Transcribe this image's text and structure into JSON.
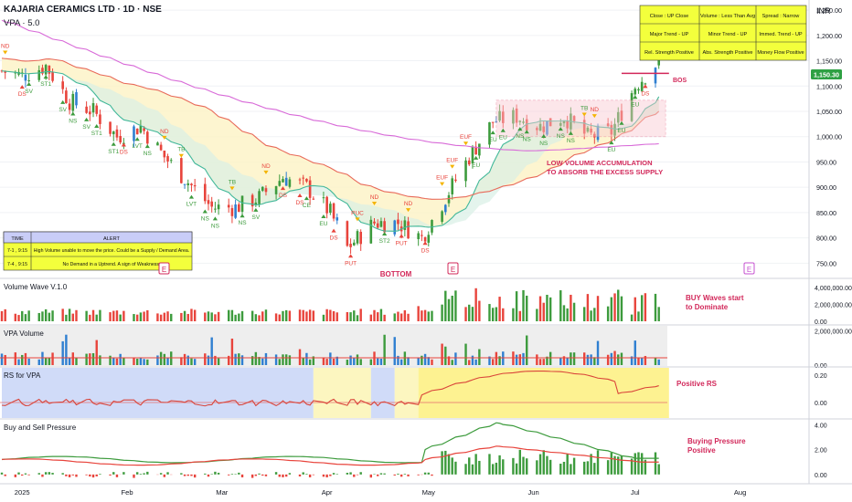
{
  "header": {
    "symbol_line": "KAJARIA CERAMICS LTD · 1D · NSE",
    "indicator": "VPA · 5.0",
    "currency": "INR",
    "price_tag": "1,150.30"
  },
  "status_table": [
    [
      "Close : UP Close",
      "Volume : Less Than Avg",
      "Spread : Narrow"
    ],
    [
      "Major Trend - UP",
      "Minor Trend - UP",
      "Immed. Trend - UP"
    ],
    [
      "Rel. Strength Positive",
      "Abs. Strength Positive",
      "Money Flow Positive"
    ]
  ],
  "alert_table": {
    "headers": [
      "TIME",
      "ALERT"
    ],
    "rows": [
      [
        "7-1 , 9:15",
        "High Volume unable to move the price. Could be a Supply / Demand Area."
      ],
      [
        "7-4 , 9:15",
        "No Demand in a Uptrend. A sign of Weakness."
      ]
    ]
  },
  "annotations": {
    "bottom": "BOTTOM",
    "low_volume_1": "LOW VOLUME ACCUMULATION",
    "low_volume_2": "TO ABSORB THE EXCESS SUPPLY",
    "buy_waves_1": "BUY Waves start",
    "buy_waves_2": "to Dominate",
    "positive_rs": "Positive RS",
    "buying_pressure_1": "Buying Pressure",
    "buying_pressure_2": "Positive",
    "bos": "BOS",
    "event_marker": "E"
  },
  "signal_labels": [
    "ND",
    "DS",
    "SV",
    "ST1",
    "SV",
    "NS",
    "SV",
    "ST1",
    "ST1",
    "DS",
    "LVT",
    "NS",
    "ND",
    "TB",
    "LVT",
    "NS",
    "NS",
    "TB",
    "NS",
    "SV",
    "ND",
    "DS",
    "DS",
    "CE",
    "EU",
    "DS",
    "PUT",
    "PUC",
    "ND",
    "ST2",
    "PUT",
    "ND",
    "DS",
    "EUF",
    "EUF",
    "EUF",
    "EU",
    "EU",
    "EU",
    "NS",
    "NS",
    "NS",
    "NS",
    "NS",
    "TB",
    "ND",
    "EU",
    "EU",
    "EU",
    "DS"
  ],
  "panes": {
    "volume_wave": "Volume Wave V.1.0",
    "vpa_volume": "VPA Volume",
    "rs": "RS for VPA",
    "pressure": "Buy and Sell Pressure"
  },
  "time_axis": [
    "2025",
    "Feb",
    "Mar",
    "Apr",
    "May",
    "Jun",
    "Jul",
    "Aug"
  ],
  "colors": {
    "up": "#3d9b3d",
    "down": "#e8443c",
    "blue": "#2f7fd1",
    "ma_long": "#d86ad8",
    "band_outer": "#e86a5a",
    "band_inner": "#43b89a",
    "annotation": "#d2285a",
    "price_tag": "#2ea043"
  },
  "chart_data": [
    {
      "type": "candlestick",
      "title": "KAJARIA CERAMICS LTD · 1D · NSE",
      "ylabel": "INR",
      "y_ticks": [
        1250,
        1200,
        1150,
        1100,
        1050,
        1000,
        950,
        900,
        850,
        800,
        750
      ],
      "ylim": [
        720,
        1270
      ],
      "last_price": 1150.3,
      "close_path": [
        {
          "date": "2024-12-26",
          "close": 1130
        },
        {
          "date": "2025-01-01",
          "close": 1120
        },
        {
          "date": "2025-01-08",
          "close": 1140
        },
        {
          "date": "2025-01-15",
          "close": 1070
        },
        {
          "date": "2025-01-22",
          "close": 1050
        },
        {
          "date": "2025-01-29",
          "close": 1000
        },
        {
          "date": "2025-02-05",
          "close": 1020
        },
        {
          "date": "2025-02-12",
          "close": 960
        },
        {
          "date": "2025-02-19",
          "close": 910
        },
        {
          "date": "2025-02-26",
          "close": 860
        },
        {
          "date": "2025-03-05",
          "close": 860
        },
        {
          "date": "2025-03-12",
          "close": 880
        },
        {
          "date": "2025-03-19",
          "close": 920
        },
        {
          "date": "2025-03-26",
          "close": 900
        },
        {
          "date": "2025-04-02",
          "close": 850
        },
        {
          "date": "2025-04-07",
          "close": 780
        },
        {
          "date": "2025-04-15",
          "close": 830
        },
        {
          "date": "2025-04-22",
          "close": 830
        },
        {
          "date": "2025-04-29",
          "close": 800
        },
        {
          "date": "2025-05-06",
          "close": 880
        },
        {
          "date": "2025-05-13",
          "close": 960
        },
        {
          "date": "2025-05-20",
          "close": 1030
        },
        {
          "date": "2025-05-27",
          "close": 1040
        },
        {
          "date": "2025-06-03",
          "close": 1020
        },
        {
          "date": "2025-06-10",
          "close": 1040
        },
        {
          "date": "2025-06-17",
          "close": 1000
        },
        {
          "date": "2025-06-24",
          "close": 1010
        },
        {
          "date": "2025-07-01",
          "close": 1100
        },
        {
          "date": "2025-07-08",
          "close": 1150
        }
      ]
    },
    {
      "type": "bar",
      "title": "Volume Wave V.1.0",
      "y_ticks": [
        "0.00",
        "2,000,000.00",
        "4,000,000.00"
      ],
      "ylim": [
        0,
        5000000
      ]
    },
    {
      "type": "bar",
      "title": "VPA Volume",
      "y_ticks": [
        "0.00",
        "2,000,000.00"
      ],
      "ylim": [
        0,
        2300000
      ]
    },
    {
      "type": "line",
      "title": "RS for VPA",
      "y_ticks": [
        "0.20",
        "0.00"
      ],
      "ylim": [
        -0.12,
        0.26
      ]
    },
    {
      "type": "bar",
      "title": "Buy and Sell Pressure",
      "y_ticks": [
        "4.00",
        "2.00",
        "0.00"
      ],
      "ylim": [
        -0.6,
        4.4
      ]
    }
  ]
}
